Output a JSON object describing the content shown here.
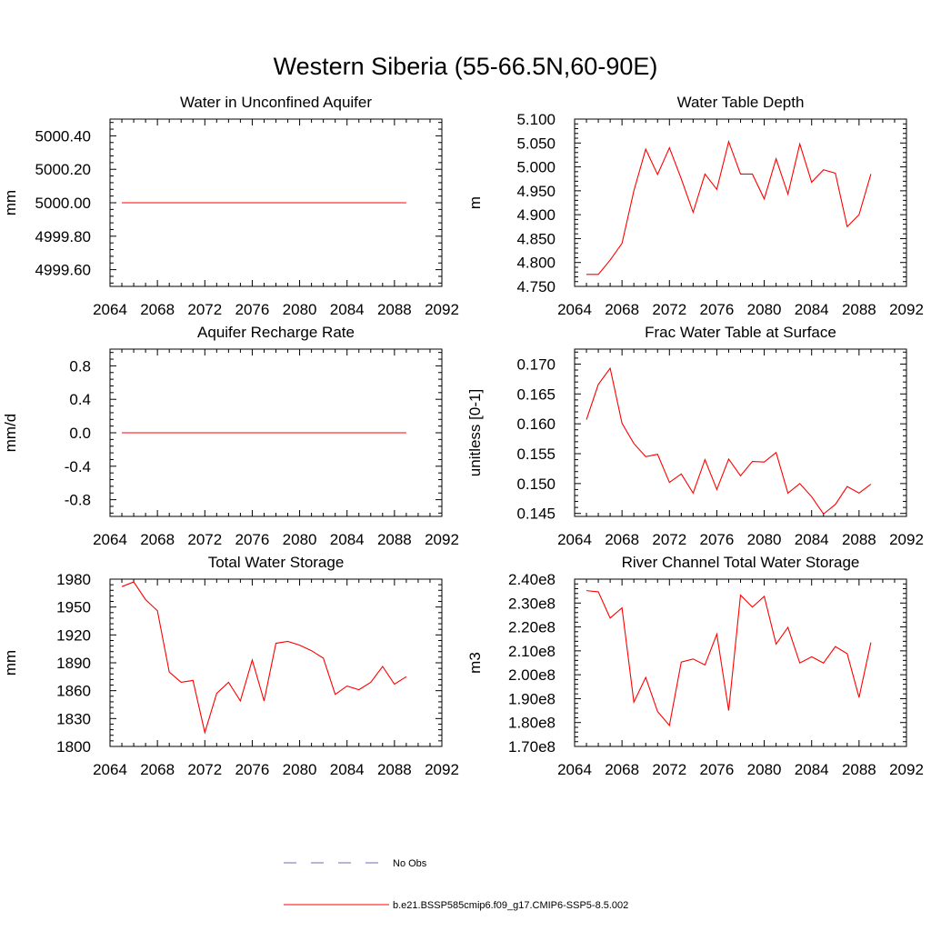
{
  "figure_title": "Western Siberia (55-66.5N,60-90E)",
  "colors": {
    "model_line": "#ff0000",
    "obs_line": "#6b6bb4",
    "axis": "#000000"
  },
  "legend": {
    "entries": [
      {
        "label": "No Obs",
        "style": "dashed",
        "color": "#6b6bb4"
      },
      {
        "label": "b.e21.BSSP585cmip6.f09_g17.CMIP6-SSP5-8.5.002",
        "style": "solid",
        "color": "#ff0000"
      }
    ]
  },
  "chart_data": [
    {
      "id": "water_unconfined_aquifer",
      "type": "line",
      "title": "Water in Unconfined Aquifer",
      "xlabel": "",
      "ylabel": "mm",
      "xlim": [
        2064,
        2092
      ],
      "ylim": [
        4999.5,
        5000.5
      ],
      "xticks": [
        2064,
        2068,
        2072,
        2076,
        2080,
        2084,
        2088,
        2092
      ],
      "xtick_labels": [
        "2064",
        "2068",
        "2072",
        "2076",
        "2080",
        "2084",
        "2088",
        "2092"
      ],
      "yticks": [
        4999.6,
        4999.8,
        5000.0,
        5000.2,
        5000.4
      ],
      "ytick_labels": [
        "4999.60",
        "4999.80",
        "5000.00",
        "5000.20",
        "5000.40"
      ],
      "series": [
        {
          "x": [
            2065,
            2066,
            2067,
            2068,
            2069,
            2070,
            2071,
            2072,
            2073,
            2074,
            2075,
            2076,
            2077,
            2078,
            2079,
            2080,
            2081,
            2082,
            2083,
            2084,
            2085,
            2086,
            2087,
            2088,
            2089
          ],
          "values": [
            5000.0,
            5000.0,
            5000.0,
            5000.0,
            5000.0,
            5000.0,
            5000.0,
            5000.0,
            5000.0,
            5000.0,
            5000.0,
            5000.0,
            5000.0,
            5000.0,
            5000.0,
            5000.0,
            5000.0,
            5000.0,
            5000.0,
            5000.0,
            5000.0,
            5000.0,
            5000.0,
            5000.0,
            5000.0
          ]
        }
      ]
    },
    {
      "id": "water_table_depth",
      "type": "line",
      "title": "Water Table Depth",
      "xlabel": "",
      "ylabel": "m",
      "xlim": [
        2064,
        2092
      ],
      "ylim": [
        4.75,
        5.1
      ],
      "xticks": [
        2064,
        2068,
        2072,
        2076,
        2080,
        2084,
        2088,
        2092
      ],
      "xtick_labels": [
        "2064",
        "2068",
        "2072",
        "2076",
        "2080",
        "2084",
        "2088",
        "2092"
      ],
      "yticks": [
        4.75,
        4.8,
        4.85,
        4.9,
        4.95,
        5.0,
        5.05,
        5.1
      ],
      "ytick_labels": [
        "4.750",
        "4.800",
        "4.850",
        "4.900",
        "4.950",
        "5.000",
        "5.050",
        "5.100"
      ],
      "series": [
        {
          "x": [
            2065,
            2066,
            2067,
            2068,
            2069,
            2070,
            2071,
            2072,
            2073,
            2074,
            2075,
            2076,
            2077,
            2078,
            2079,
            2080,
            2081,
            2082,
            2083,
            2084,
            2085,
            2086,
            2087,
            2088,
            2089
          ],
          "values": [
            4.775,
            4.775,
            4.805,
            4.84,
            4.95,
            5.037,
            4.984,
            5.04,
            4.975,
            4.905,
            4.985,
            4.953,
            5.053,
            4.985,
            4.985,
            4.933,
            5.017,
            4.943,
            5.048,
            4.968,
            4.994,
            4.987,
            4.875,
            4.9,
            4.985
          ]
        }
      ]
    },
    {
      "id": "aquifer_recharge_rate",
      "type": "line",
      "title": "Aquifer Recharge Rate",
      "xlabel": "",
      "ylabel": "mm/d",
      "xlim": [
        2064,
        2092
      ],
      "ylim": [
        -1.0,
        1.0
      ],
      "xticks": [
        2064,
        2068,
        2072,
        2076,
        2080,
        2084,
        2088,
        2092
      ],
      "xtick_labels": [
        "2064",
        "2068",
        "2072",
        "2076",
        "2080",
        "2084",
        "2088",
        "2092"
      ],
      "yticks": [
        -0.8,
        -0.4,
        0.0,
        0.4,
        0.8
      ],
      "ytick_labels": [
        "-0.8",
        "-0.4",
        "0.0",
        "0.4",
        "0.8"
      ],
      "series": [
        {
          "x": [
            2065,
            2066,
            2067,
            2068,
            2069,
            2070,
            2071,
            2072,
            2073,
            2074,
            2075,
            2076,
            2077,
            2078,
            2079,
            2080,
            2081,
            2082,
            2083,
            2084,
            2085,
            2086,
            2087,
            2088,
            2089
          ],
          "values": [
            0,
            0,
            0,
            0,
            0,
            0,
            0,
            0,
            0,
            0,
            0,
            0,
            0,
            0,
            0,
            0,
            0,
            0,
            0,
            0,
            0,
            0,
            0,
            0,
            0
          ]
        }
      ]
    },
    {
      "id": "frac_water_table_surface",
      "type": "line",
      "title": "Frac Water Table at Surface",
      "xlabel": "",
      "ylabel": "unitless [0-1]",
      "xlim": [
        2064,
        2092
      ],
      "ylim": [
        0.1445,
        0.1725
      ],
      "xticks": [
        2064,
        2068,
        2072,
        2076,
        2080,
        2084,
        2088,
        2092
      ],
      "xtick_labels": [
        "2064",
        "2068",
        "2072",
        "2076",
        "2080",
        "2084",
        "2088",
        "2092"
      ],
      "yticks": [
        0.145,
        0.15,
        0.155,
        0.16,
        0.165,
        0.17
      ],
      "ytick_labels": [
        "0.145",
        "0.150",
        "0.155",
        "0.160",
        "0.165",
        "0.170"
      ],
      "series": [
        {
          "x": [
            2065,
            2066,
            2067,
            2068,
            2069,
            2070,
            2071,
            2072,
            2073,
            2074,
            2075,
            2076,
            2077,
            2078,
            2079,
            2080,
            2081,
            2082,
            2083,
            2084,
            2085,
            2086,
            2087,
            2088,
            2089
          ],
          "values": [
            0.1607,
            0.1666,
            0.1693,
            0.1601,
            0.1567,
            0.1545,
            0.1549,
            0.1502,
            0.1516,
            0.1484,
            0.154,
            0.149,
            0.1541,
            0.1513,
            0.1537,
            0.1536,
            0.1552,
            0.1484,
            0.15,
            0.1478,
            0.1449,
            0.1465,
            0.1495,
            0.1484,
            0.1499
          ]
        }
      ]
    },
    {
      "id": "total_water_storage",
      "type": "line",
      "title": "Total Water Storage",
      "xlabel": "",
      "ylabel": "mm",
      "xlim": [
        2064,
        2092
      ],
      "ylim": [
        1800,
        1980
      ],
      "xticks": [
        2064,
        2068,
        2072,
        2076,
        2080,
        2084,
        2088,
        2092
      ],
      "xtick_labels": [
        "2064",
        "2068",
        "2072",
        "2076",
        "2080",
        "2084",
        "2088",
        "2092"
      ],
      "yticks": [
        1800,
        1830,
        1860,
        1890,
        1920,
        1950,
        1980
      ],
      "ytick_labels": [
        "1800",
        "1830",
        "1860",
        "1890",
        "1920",
        "1950",
        "1980"
      ],
      "series": [
        {
          "x": [
            2065,
            2066,
            2067,
            2068,
            2069,
            2070,
            2071,
            2072,
            2073,
            2074,
            2075,
            2076,
            2077,
            2078,
            2079,
            2080,
            2081,
            2082,
            2083,
            2084,
            2085,
            2086,
            2087,
            2088,
            2089
          ],
          "values": [
            1972,
            1977,
            1958,
            1946,
            1880,
            1869,
            1871,
            1815,
            1857,
            1869,
            1849,
            1893,
            1849,
            1911,
            1913,
            1909,
            1903,
            1895,
            1856,
            1865,
            1861,
            1869,
            1886,
            1867,
            1875
          ]
        }
      ]
    },
    {
      "id": "river_channel_storage",
      "type": "line",
      "title": "River Channel Total Water Storage",
      "xlabel": "",
      "ylabel": "m3",
      "xlim": [
        2064,
        2092
      ],
      "ylim": [
        170000000.0,
        240000000.0
      ],
      "xticks": [
        2064,
        2068,
        2072,
        2076,
        2080,
        2084,
        2088,
        2092
      ],
      "xtick_labels": [
        "2064",
        "2068",
        "2072",
        "2076",
        "2080",
        "2084",
        "2088",
        "2092"
      ],
      "yticks": [
        170000000.0,
        180000000.0,
        190000000.0,
        200000000.0,
        210000000.0,
        220000000.0,
        230000000.0,
        240000000.0
      ],
      "ytick_labels": [
        "1.70e8",
        "1.80e8",
        "1.90e8",
        "2.00e8",
        "2.10e8",
        "2.20e8",
        "2.30e8",
        "2.40e8"
      ],
      "series": [
        {
          "x": [
            2065,
            2066,
            2067,
            2068,
            2069,
            2070,
            2071,
            2072,
            2073,
            2074,
            2075,
            2076,
            2077,
            2078,
            2079,
            2080,
            2081,
            2082,
            2083,
            2084,
            2085,
            2086,
            2087,
            2088,
            2089
          ],
          "values": [
            235200000.0,
            234700000.0,
            223700000.0,
            228000000.0,
            188500000.0,
            198900000.0,
            184600000.0,
            178800000.0,
            205300000.0,
            206600000.0,
            204100000.0,
            217000000.0,
            185000000.0,
            233300000.0,
            228300000.0,
            232800000.0,
            212800000.0,
            219800000.0,
            204900000.0,
            207500000.0,
            204900000.0,
            211800000.0,
            208800000.0,
            190500000.0,
            213500000.0
          ]
        }
      ]
    }
  ]
}
